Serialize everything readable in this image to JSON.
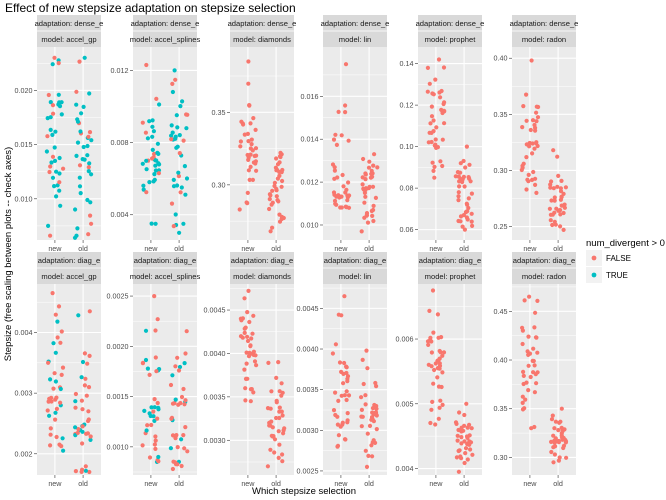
{
  "chart_data": {
    "type": "scatter",
    "title": "Effect of new stepsize adaptation on stepsize selection",
    "xlabel": "Which stepsize selection",
    "ylabel": "Stepsize (free scaling between plots -- check axes)",
    "legend": {
      "title": "num_divergent > 0",
      "placement": "right",
      "entries": [
        {
          "label": "FALSE",
          "color": "#F8766D"
        },
        {
          "label": "TRUE",
          "color": "#00BFC4"
        }
      ]
    },
    "categories": [
      "new",
      "old"
    ],
    "panel_background": "#EBEBEB",
    "strip_background": "#D9D9D9",
    "panels": [
      {
        "adaptation": "adaptation: dense_e",
        "model": "model: accel_gp",
        "ylim": [
          0.0062,
          0.024
        ],
        "ticks": [
          0.01,
          0.015,
          0.02
        ],
        "tick_labels": [
          "0.010",
          "0.015",
          "0.020"
        ],
        "new_n": 40,
        "old_n": 40,
        "new_range": [
          0.0066,
          0.023
        ],
        "old_range": [
          0.0064,
          0.023
        ],
        "new_center": 0.015,
        "old_center": 0.014,
        "true_fraction": 0.72
      },
      {
        "adaptation": "adaptation: dense_e",
        "model": "model: accel_splines",
        "ylim": [
          0.0026,
          0.0133
        ],
        "ticks": [
          0.004,
          0.008,
          0.012
        ],
        "tick_labels": [
          "0.004",
          "0.008",
          "0.012"
        ],
        "new_n": 40,
        "old_n": 40,
        "new_range": [
          0.0035,
          0.0123
        ],
        "old_range": [
          0.003,
          0.012
        ],
        "new_center": 0.0072,
        "old_center": 0.0075,
        "true_fraction": 0.7
      },
      {
        "adaptation": "adaptation: dense_e",
        "model": "model: diamonds",
        "ylim": [
          0.262,
          0.395
        ],
        "ticks": [
          0.3,
          0.35
        ],
        "tick_labels": [
          "0.30",
          "0.35"
        ],
        "new_n": 38,
        "old_n": 38,
        "new_range": [
          0.283,
          0.385
        ],
        "old_range": [
          0.268,
          0.322
        ],
        "new_center": 0.325,
        "old_center": 0.296,
        "true_fraction": 0
      },
      {
        "adaptation": "adaptation: dense_e",
        "model": "model: lin",
        "ylim": [
          0.0093,
          0.0183
        ],
        "ticks": [
          0.01,
          0.012,
          0.014,
          0.016
        ],
        "tick_labels": [
          "0.010",
          "0.012",
          "0.014",
          "0.016"
        ],
        "new_n": 38,
        "old_n": 38,
        "new_range": [
          0.0108,
          0.0175
        ],
        "old_range": [
          0.0097,
          0.0133
        ],
        "new_center": 0.0128,
        "old_center": 0.0116,
        "true_fraction": 0
      },
      {
        "adaptation": "adaptation: dense_e",
        "model": "model: prophet",
        "ylim": [
          0.055,
          0.148
        ],
        "ticks": [
          0.06,
          0.08,
          0.1,
          0.12,
          0.14
        ],
        "tick_labels": [
          "0.06",
          "0.08",
          "0.10",
          "0.12",
          "0.14"
        ],
        "new_n": 40,
        "old_n": 40,
        "new_range": [
          0.085,
          0.142
        ],
        "old_range": [
          0.06,
          0.1
        ],
        "new_center": 0.115,
        "old_center": 0.077,
        "true_fraction": 0
      },
      {
        "adaptation": "adaptation: dense_e",
        "model": "model: radon",
        "ylim": [
          0.238,
          0.41
        ],
        "ticks": [
          0.25,
          0.3,
          0.35,
          0.4
        ],
        "tick_labels": [
          "0.25",
          "0.30",
          "0.35",
          "0.40"
        ],
        "new_n": 38,
        "old_n": 38,
        "new_range": [
          0.28,
          0.398
        ],
        "old_range": [
          0.247,
          0.318
        ],
        "new_center": 0.325,
        "old_center": 0.278,
        "true_fraction": 0
      },
      {
        "adaptation": "adaptation: diag_e",
        "model": "model: accel_gp",
        "ylim": [
          0.00165,
          0.0048
        ],
        "ticks": [
          0.002,
          0.003,
          0.004
        ],
        "tick_labels": [
          "0.002",
          "0.003",
          "0.004"
        ],
        "new_n": 40,
        "old_n": 40,
        "new_range": [
          0.00205,
          0.00465
        ],
        "old_range": [
          0.0017,
          0.00435
        ],
        "new_center": 0.0032,
        "old_center": 0.0027,
        "true_fraction": 0.28
      },
      {
        "adaptation": "adaptation: diag_e",
        "model": "model: accel_splines",
        "ylim": [
          0.00072,
          0.00262
        ],
        "ticks": [
          0.001,
          0.0015,
          0.002,
          0.0025
        ],
        "tick_labels": [
          "0.0010",
          "0.0015",
          "0.0020",
          "0.0025"
        ],
        "new_n": 40,
        "old_n": 40,
        "new_range": [
          0.00085,
          0.0025
        ],
        "old_range": [
          0.00078,
          0.00215
        ],
        "new_center": 0.0015,
        "old_center": 0.0013,
        "true_fraction": 0.38
      },
      {
        "adaptation": "adaptation: diag_e",
        "model": "model: diamonds",
        "ylim": [
          0.0026,
          0.0048
        ],
        "ticks": [
          0.003,
          0.0035,
          0.004,
          0.0045
        ],
        "tick_labels": [
          "0.0030",
          "0.0035",
          "0.0040",
          "0.0045"
        ],
        "new_n": 38,
        "old_n": 38,
        "new_range": [
          0.00345,
          0.00472
        ],
        "old_range": [
          0.0027,
          0.0039
        ],
        "new_center": 0.004,
        "old_center": 0.0033,
        "true_fraction": 0
      },
      {
        "adaptation": "adaptation: diag_e",
        "model": "model: lin",
        "ylim": [
          0.00245,
          0.0048
        ],
        "ticks": [
          0.0025,
          0.003,
          0.0035,
          0.004,
          0.0045
        ],
        "tick_labels": [
          "0.0025",
          "0.0030",
          "0.0035",
          "0.0040",
          "0.0045"
        ],
        "new_n": 38,
        "old_n": 38,
        "new_range": [
          0.0028,
          0.00465
        ],
        "old_range": [
          0.00255,
          0.00398
        ],
        "new_center": 0.0035,
        "old_center": 0.00325,
        "true_fraction": 0
      },
      {
        "adaptation": "adaptation: diag_e",
        "model": "model: prophet",
        "ylim": [
          0.0039,
          0.00685
        ],
        "ticks": [
          0.004,
          0.005,
          0.006
        ],
        "tick_labels": [
          "0.004",
          "0.005",
          "0.006"
        ],
        "new_n": 40,
        "old_n": 40,
        "new_range": [
          0.00468,
          0.00675
        ],
        "old_range": [
          0.00395,
          0.005
        ],
        "new_center": 0.0056,
        "old_center": 0.0044,
        "true_fraction": 0
      },
      {
        "adaptation": "adaptation: diag_e",
        "model": "model: radon",
        "ylim": [
          0.282,
          0.478
        ],
        "ticks": [
          0.3,
          0.35,
          0.4,
          0.45
        ],
        "tick_labels": [
          "0.30",
          "0.35",
          "0.40",
          "0.45"
        ],
        "new_n": 38,
        "old_n": 38,
        "new_range": [
          0.33,
          0.465
        ],
        "old_range": [
          0.295,
          0.35
        ],
        "new_center": 0.39,
        "old_center": 0.32,
        "true_fraction": 0
      }
    ]
  }
}
